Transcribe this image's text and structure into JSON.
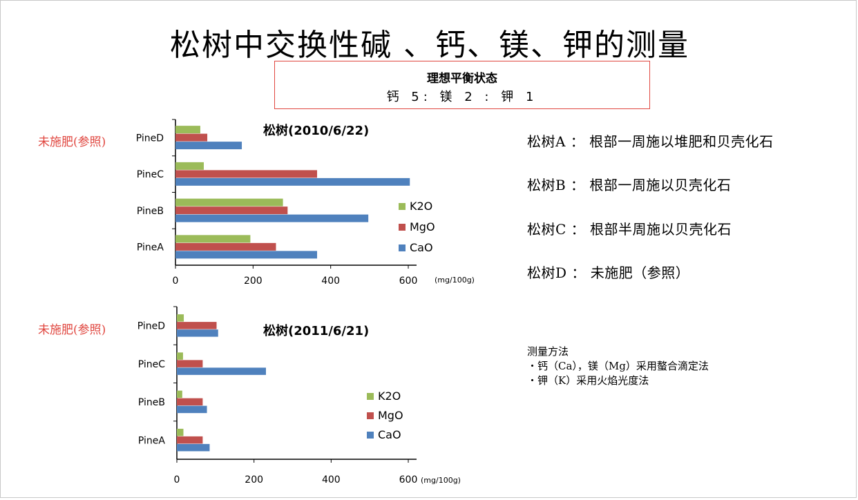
{
  "title": "松树中交换性碱 、钙、镁、钾的测量",
  "ratio_box": {
    "title": "理想平衡状态",
    "value": "钙 5: 镁 2 : 钾 1",
    "border_color": "#e0463f"
  },
  "control_label": "未施肥(参照)",
  "tree_legend": [
    "松树A ： 根部一周施以堆肥和贝壳化石",
    "松树B ： 根部一周施以贝壳化石",
    "松树C ： 根部半周施以贝壳化石",
    "松树D ： 未施肥（参照）"
  ],
  "method": {
    "title": "测量方法",
    "lines": [
      "・钙（Ca），镁（Mg）采用螯合滴定法",
      "・钾（K）采用火焰光度法"
    ]
  },
  "colors": {
    "K2O": "#9bbb59",
    "MgO": "#c0504d",
    "CaO": "#4f81bd"
  },
  "chart_data": [
    {
      "type": "bar",
      "orientation": "horizontal",
      "title": "松树(2010/6/22)",
      "unit": "(mg/100g)",
      "categories": [
        "PineA",
        "PineB",
        "PineC",
        "PineD"
      ],
      "xlim": [
        0,
        600
      ],
      "xticks": [
        "0",
        "200",
        "400",
        "600"
      ],
      "legend": [
        "K2O",
        "MgO",
        "CaO"
      ],
      "series": [
        {
          "name": "K2O",
          "values": [
            193,
            277,
            73,
            64
          ]
        },
        {
          "name": "MgO",
          "values": [
            259,
            289,
            365,
            82
          ]
        },
        {
          "name": "CaO",
          "values": [
            365,
            497,
            604,
            171
          ]
        }
      ]
    },
    {
      "type": "bar",
      "orientation": "horizontal",
      "title": "松树(2011/6/21)",
      "unit": "(mg/100g)",
      "categories": [
        "PineA",
        "PineB",
        "PineC",
        "PineD"
      ],
      "xlim": [
        0,
        600
      ],
      "xticks": [
        "0",
        "200",
        "400",
        "600"
      ],
      "legend": [
        "K2O",
        "MgO",
        "CaO"
      ],
      "series": [
        {
          "name": "K2O",
          "values": [
            17,
            14,
            16,
            18
          ]
        },
        {
          "name": "MgO",
          "values": [
            67,
            67,
            67,
            103
          ]
        },
        {
          "name": "CaO",
          "values": [
            85,
            78,
            231,
            107
          ]
        }
      ]
    }
  ]
}
